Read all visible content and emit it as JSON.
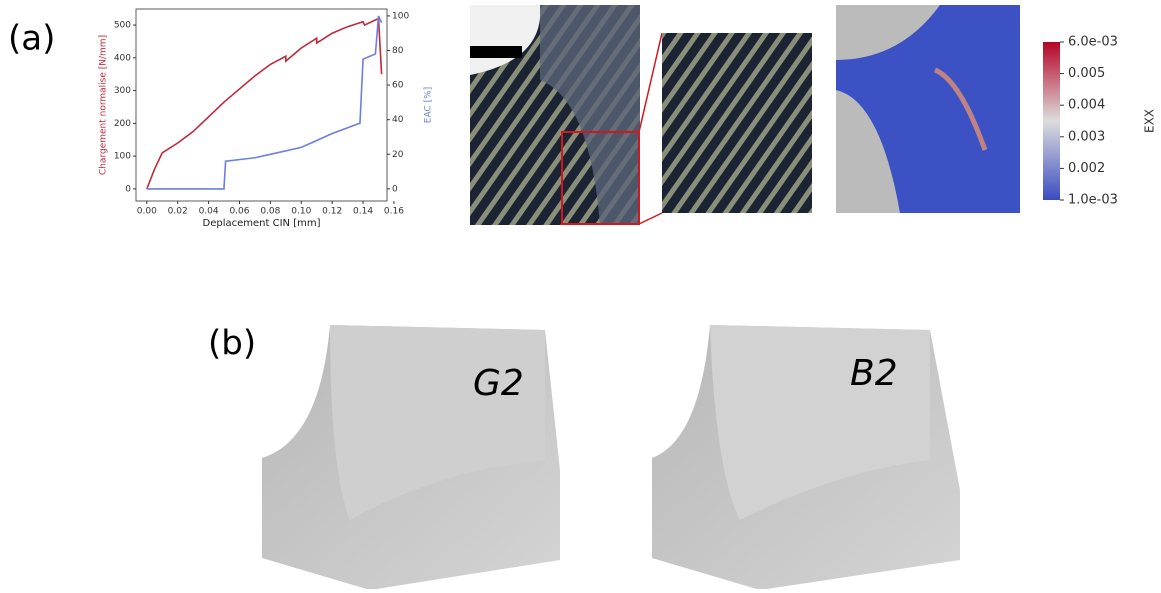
{
  "panel_labels": {
    "a": "(a)",
    "b": "(b)"
  },
  "chart_data": {
    "type": "line",
    "xlabel": "Deplacement CIN [mm]",
    "ylabel": "Chargement normalise [N/mm]",
    "y2label": "EAC [%]",
    "xlim": [
      -0.007,
      0.1555
    ],
    "ylim": [
      -37,
      549
    ],
    "y2lim": [
      -7,
      104
    ],
    "xticks": [
      {
        "value": 0,
        "label": "0.00"
      },
      0.02,
      0.04,
      0.06,
      0.08,
      {
        "value": 0.1,
        "label": "0.10"
      },
      0.12,
      0.14,
      0.16
    ],
    "yticks": [
      0,
      100,
      200,
      300,
      400,
      500
    ],
    "y2ticks": [
      0,
      20,
      40,
      60,
      80,
      100
    ],
    "series": [
      {
        "color": "#c0283a",
        "x": [
          0,
          0.005,
          0.01,
          0.02,
          0.03,
          0.04,
          0.05,
          0.06,
          0.07,
          0.08,
          0.09,
          0.09,
          0.1,
          0.11,
          0.11,
          0.12,
          0.13,
          0.14,
          0.141,
          0.15,
          0.152
        ],
        "values": [
          0,
          60,
          110,
          140,
          175,
          220,
          265,
          305,
          345,
          380,
          405,
          390,
          430,
          460,
          445,
          475,
          495,
          510,
          500,
          520,
          350
        ]
      },
      {
        "color": "#6b7fe0",
        "axis": "y2",
        "x": [
          0,
          0.05,
          0.05,
          0.051,
          0.07,
          0.08,
          0.1,
          0.11,
          0.12,
          0.138,
          0.14,
          0.148,
          0.15,
          0.152
        ],
        "values": [
          0,
          0,
          1,
          16,
          18,
          20,
          24,
          28,
          32,
          38,
          75,
          78,
          100,
          96
        ]
      }
    ]
  },
  "colorbar": {
    "label": "EXX",
    "range": [
      0.001,
      0.006
    ],
    "ticks": [
      {
        "value": 0.006,
        "label": "6.0e-03"
      },
      0.005,
      0.004,
      0.003,
      0.002,
      {
        "value": 0.001,
        "label": "1.0e-03"
      }
    ]
  },
  "renders": [
    {
      "label": "G2"
    },
    {
      "label": "B2"
    }
  ]
}
